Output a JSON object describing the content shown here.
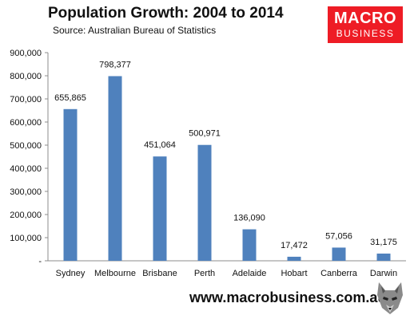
{
  "chart_data": {
    "type": "bar",
    "title": "Population Growth: 2004 to 2014",
    "subtitle": "Source: Australian Bureau of Statistics",
    "categories": [
      "Sydney",
      "Melbourne",
      "Brisbane",
      "Perth",
      "Adelaide",
      "Hobart",
      "Canberra",
      "Darwin"
    ],
    "values": [
      655865,
      798377,
      451064,
      500971,
      136090,
      17472,
      57056,
      31175
    ],
    "data_labels": [
      "655,865",
      "798,377",
      "451,064",
      "500,971",
      "136,090",
      "17,472",
      "57,056",
      "31,175"
    ],
    "ylim": [
      0,
      900000
    ],
    "yticks": [
      0,
      100000,
      200000,
      300000,
      400000,
      500000,
      600000,
      700000,
      800000,
      900000
    ],
    "ytick_labels": [
      "-",
      "100,000",
      "200,000",
      "300,000",
      "400,000",
      "500,000",
      "600,000",
      "700,000",
      "800,000",
      "900,000"
    ],
    "xlabel": "",
    "ylabel": "",
    "bar_color": "#4f81bd",
    "grid": false,
    "legend": false
  },
  "branding": {
    "logo_line1": "MACRO",
    "logo_line2": "BUSINESS",
    "logo_color": "#ee1c25",
    "website": "www.macrobusiness.com.au",
    "mascot_icon": "wolf-head-icon"
  }
}
